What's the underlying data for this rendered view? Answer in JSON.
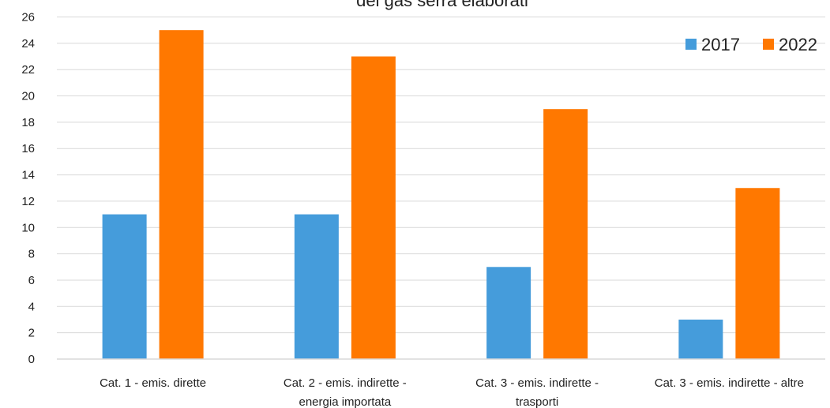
{
  "chart_data": {
    "type": "bar",
    "title": "dei gas serra elaborati",
    "categories": [
      [
        "Cat. 1 - emis. dirette"
      ],
      [
        "Cat. 2 - emis. indirette -",
        "energia importata"
      ],
      [
        "Cat. 3 - emis. indirette -",
        "trasporti"
      ],
      [
        "Cat. 3 - emis. indirette - altre"
      ]
    ],
    "series": [
      {
        "name": "2017",
        "color": "#459CDB",
        "values": [
          11,
          11,
          7,
          3
        ]
      },
      {
        "name": "2022",
        "color": "#FF7800",
        "values": [
          25,
          23,
          19,
          13
        ]
      }
    ],
    "ylim": [
      0,
      26
    ],
    "yticks": [
      0,
      2,
      4,
      6,
      8,
      10,
      12,
      14,
      16,
      18,
      20,
      22,
      24,
      26
    ],
    "grid": true,
    "gridColor": "#D9D9D9",
    "legend_position": "top-right"
  }
}
